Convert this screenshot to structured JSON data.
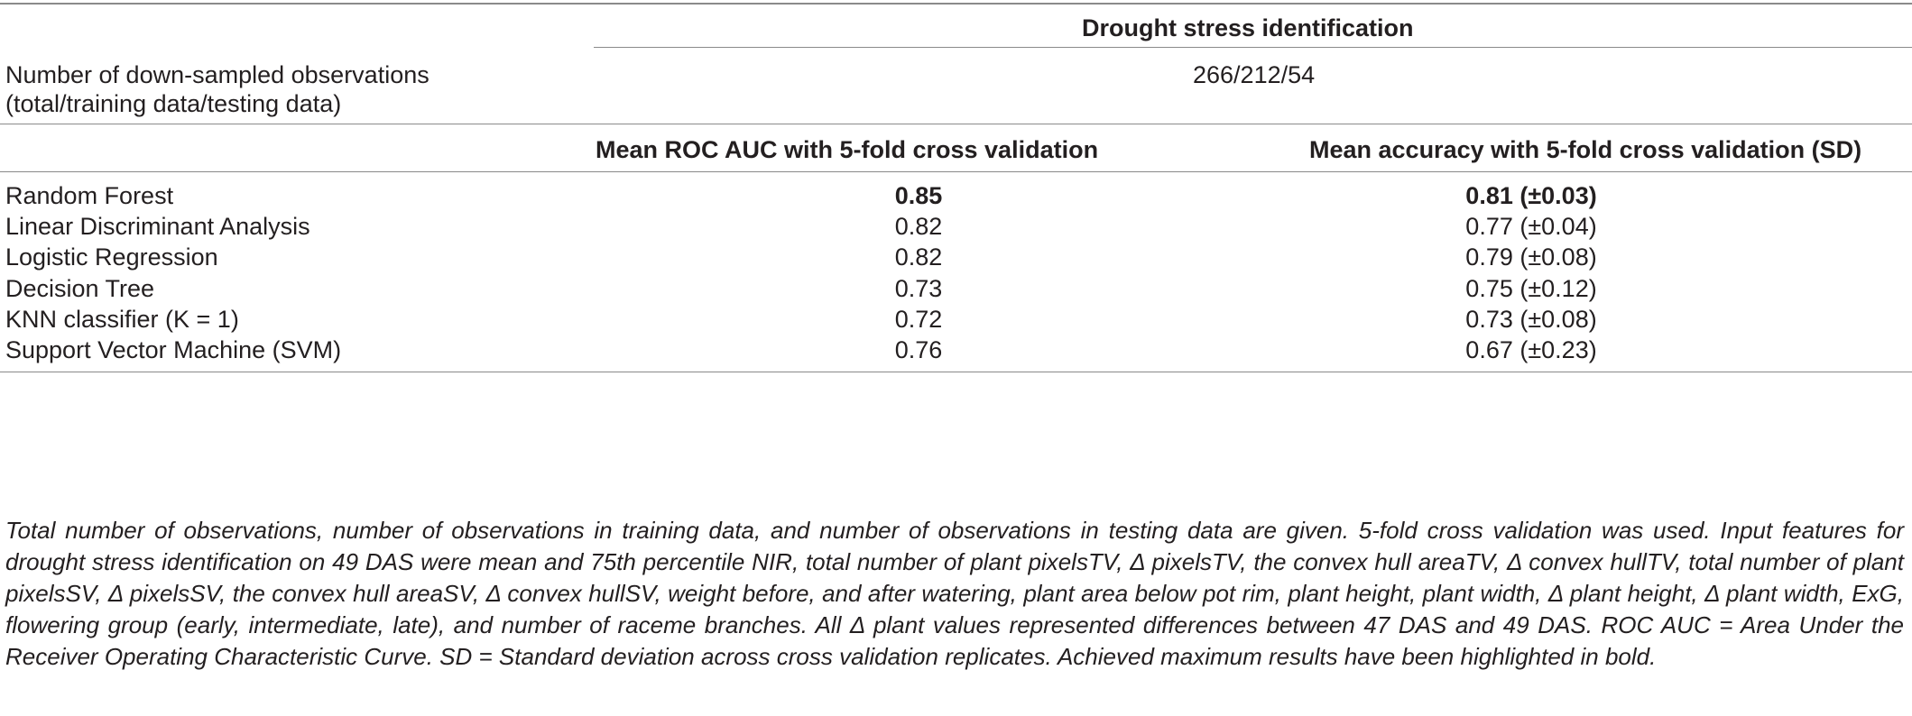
{
  "header": {
    "group_title": "Drought stress identification",
    "obs_label_line1": "Number of down-sampled observations",
    "obs_label_line2": "(total/training data/testing data)",
    "obs_value": "266/212/54",
    "col_roc": "Mean ROC AUC with 5-fold cross validation",
    "col_acc": "Mean accuracy with 5-fold cross validation (SD)"
  },
  "rows": [
    {
      "model": "Random Forest",
      "roc": "0.85",
      "acc": "0.81 (±0.03)",
      "bold": true
    },
    {
      "model": "Linear Discriminant Analysis",
      "roc": "0.82",
      "acc": "0.77 (±0.04)",
      "bold": false
    },
    {
      "model": "Logistic Regression",
      "roc": "0.82",
      "acc": "0.79 (±0.08)",
      "bold": false
    },
    {
      "model": "Decision Tree",
      "roc": "0.73",
      "acc": "0.75 (±0.12)",
      "bold": false
    },
    {
      "model": "KNN classifier (K = 1)",
      "roc": "0.72",
      "acc": "0.73 (±0.08)",
      "bold": false
    },
    {
      "model": "Support Vector Machine (SVM)",
      "roc": "0.76",
      "acc": "0.67 (±0.23)",
      "bold": false
    }
  ],
  "caption": "Total number of observations, number of observations in training data, and number of observations in testing data are given. 5-fold cross validation was used. Input features for drought stress identification on 49 DAS were mean and 75th percentile NIR, total number of plant pixelsTV, Δ pixelsTV, the convex hull areaTV, Δ convex hullTV, total number of plant pixelsSV, Δ pixelsSV, the convex hull areaSV, Δ convex hullSV, weight before, and after watering, plant area below pot rim, plant height, plant width, Δ plant height, Δ plant width, ExG, flowering group (early, intermediate, late), and number of raceme branches. All Δ plant values represented differences between 47 DAS and 49 DAS. ROC AUC = Area Under the Receiver Operating Characteristic Curve. SD = Standard deviation across cross validation replicates. Achieved maximum results have been highlighted in bold."
}
